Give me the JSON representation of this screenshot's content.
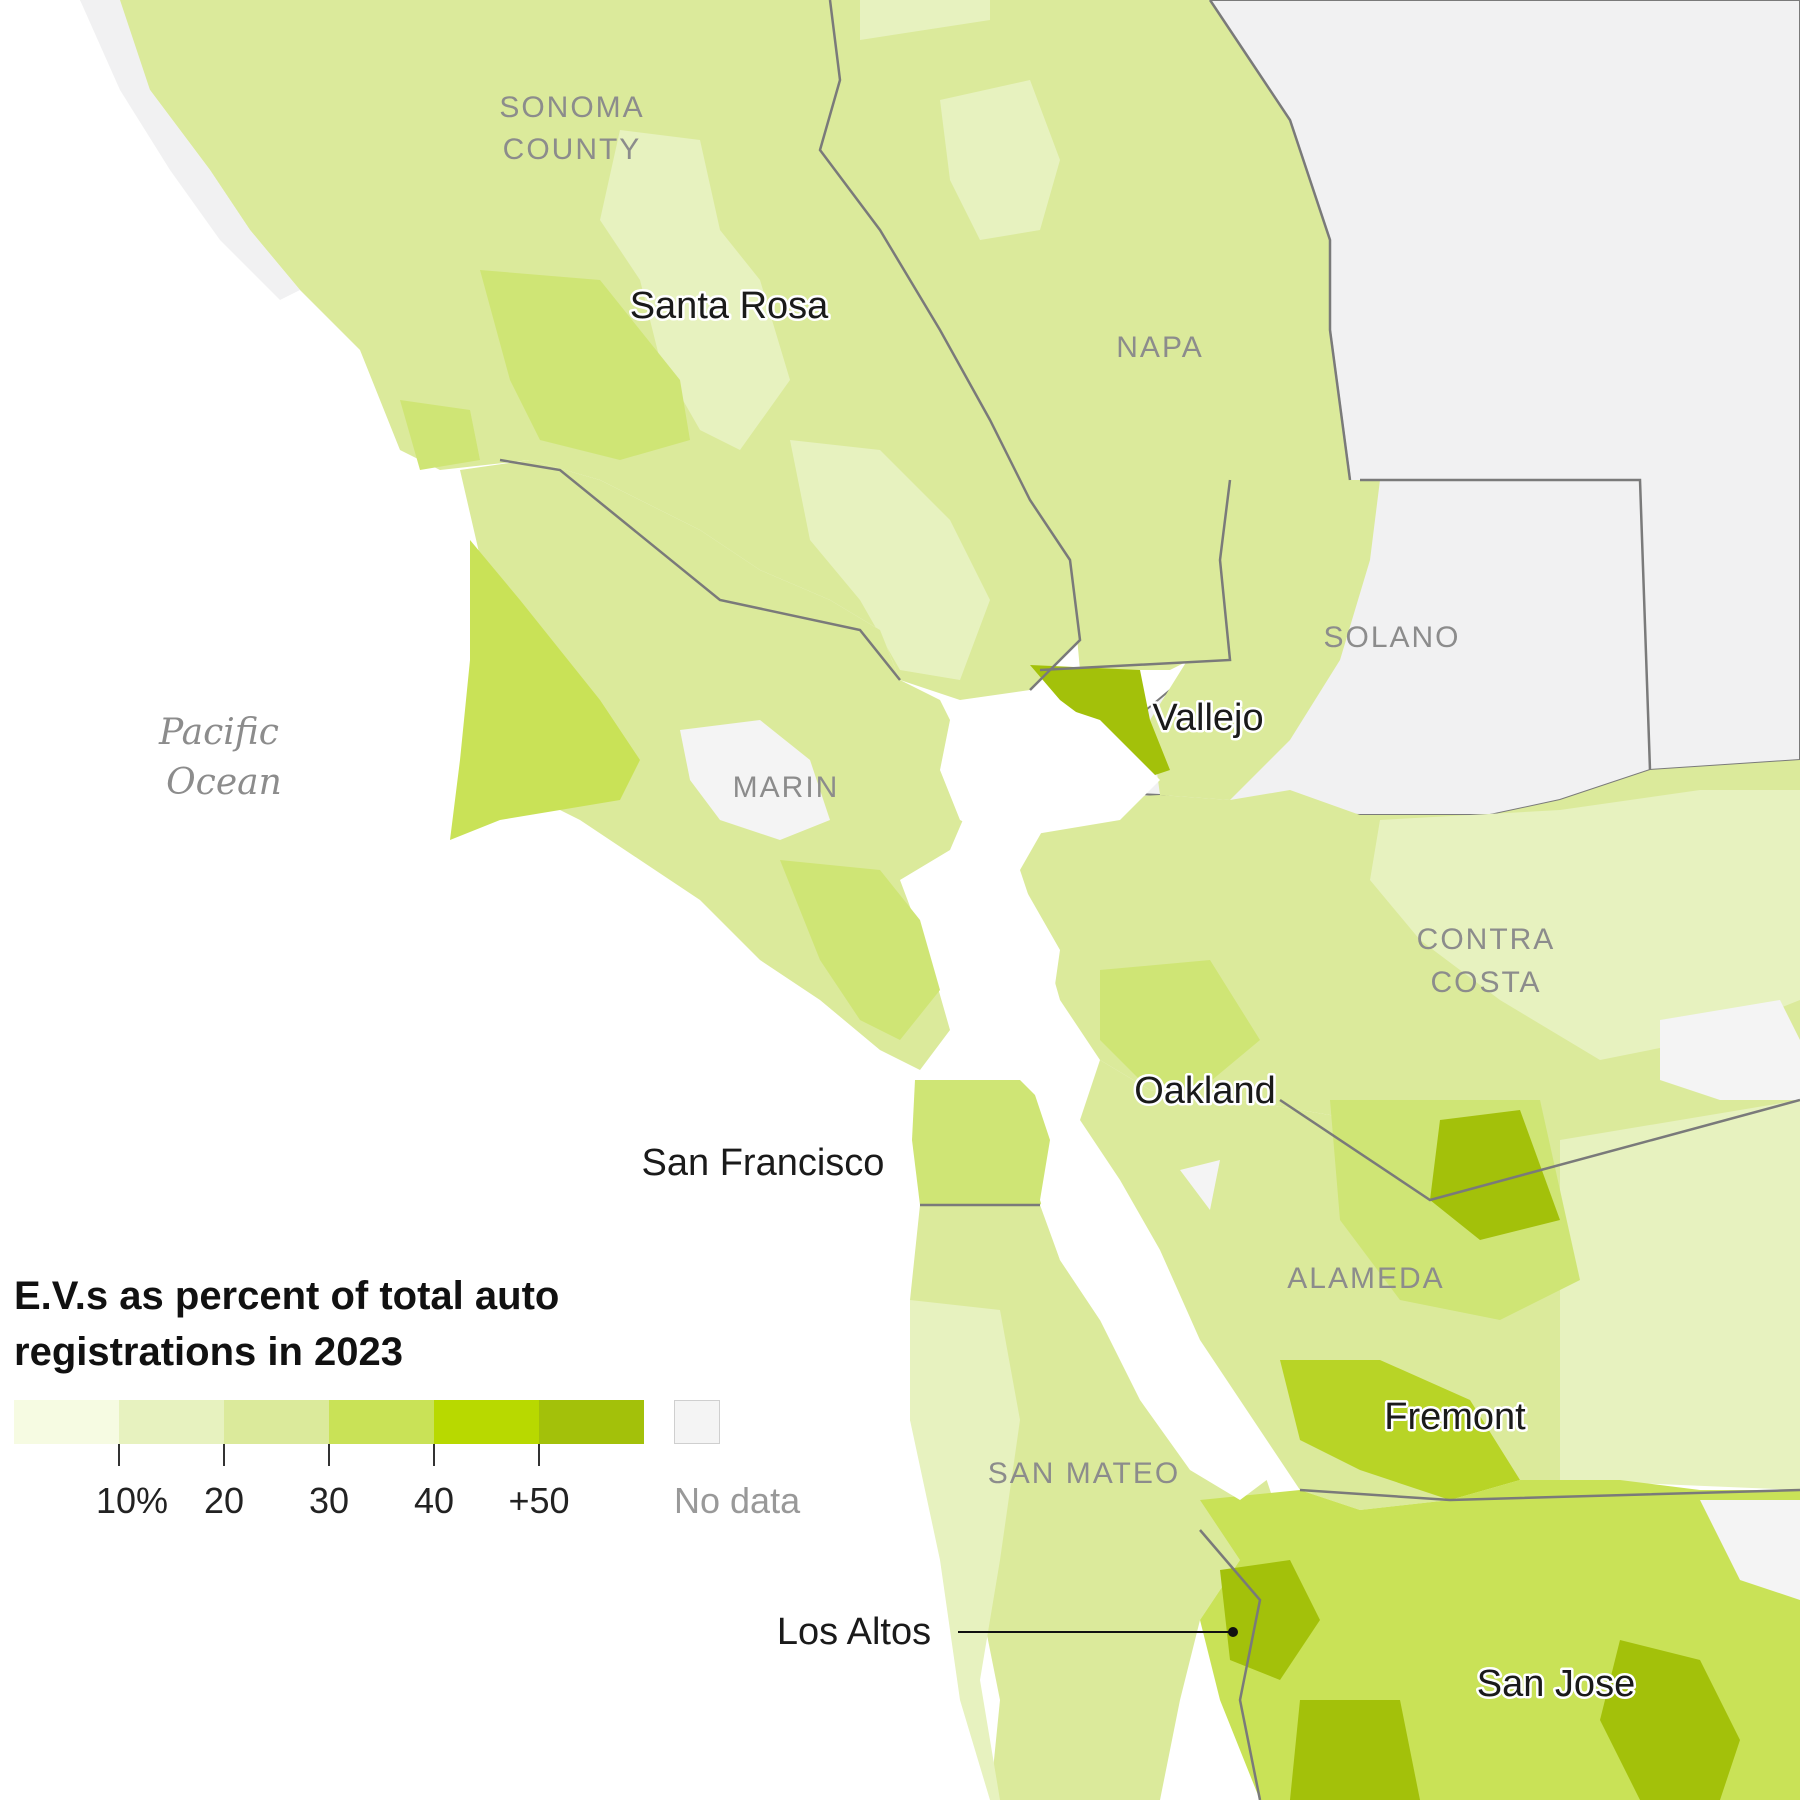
{
  "legend": {
    "title": "E.V.s as percent of total auto registrations in 2023",
    "colors": [
      "#f6fbe2",
      "#e7f2bf",
      "#dbea9b",
      "#c9e257",
      "#b8d900",
      "#a3c10a"
    ],
    "ticks": [
      "10%",
      "20",
      "30",
      "40",
      "+50"
    ],
    "no_data_label": "No data",
    "no_data_color": "#f4f4f4"
  },
  "map": {
    "ocean_label": "Pacific Ocean",
    "water_color": "#ffffff",
    "outside_region_color": "#f1f1f2",
    "county_border_color": "#7a7a7a",
    "counties": {
      "sonoma": "SONOMA COUNTY",
      "napa": "NAPA",
      "solano": "SOLANO",
      "marin": "MARIN",
      "contra_costa": "CONTRA COSTA",
      "alameda": "ALAMEDA",
      "san_mateo": "SAN MATEO"
    },
    "cities": {
      "santa_rosa": "Santa Rosa",
      "vallejo": "Vallejo",
      "oakland": "Oakland",
      "san_francisco": "San Francisco",
      "fremont": "Fremont",
      "los_altos": "Los Altos",
      "san_jose": "San Jose"
    }
  }
}
